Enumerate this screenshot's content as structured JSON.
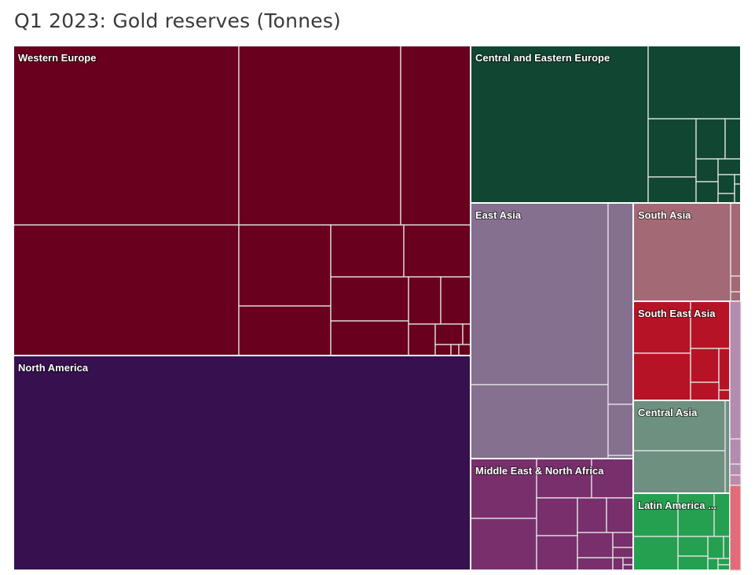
{
  "title": "Q1 2023: Gold reserves (Tonnes)",
  "chart_data": {
    "type": "treemap",
    "title": "Q1 2023: Gold reserves (Tonnes)",
    "groups": [
      {
        "name": "Western Europe",
        "color": "#68001e"
      },
      {
        "name": "Central and Eastern Europe",
        "color": "#114632"
      },
      {
        "name": "East Asia",
        "color": "#857090"
      },
      {
        "name": "South Asia",
        "color": "#a36974"
      },
      {
        "name": "South East Asia",
        "color": "#b61426"
      },
      {
        "name": "Central Asia",
        "color": "#6d9080"
      },
      {
        "name": "Middle East & North Africa",
        "color": "#78306c"
      },
      {
        "name": "Latin America ...",
        "color": "#25a050"
      },
      {
        "name": "North America",
        "color": "#36104f"
      }
    ]
  }
}
